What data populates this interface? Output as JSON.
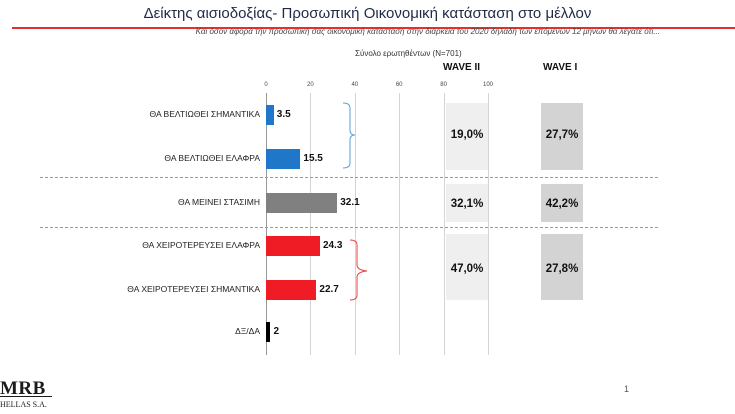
{
  "header": {
    "title": "Δείκτης αισιοδοξίας- Προσωπική Οικονομική κατάσταση στο μέλλον",
    "subtitle": "Και όσον αφορά την προσωπική σας οικονομική κατάσταση στην διάρκεια του 2020 δηλαδή των επόμενων 12 μηνών θα λέγατε ότι..."
  },
  "total_label": "Σύνολο ερωτηθέντων (Ν=701)",
  "wave_headers": {
    "wave2": "WAVE II",
    "wave1": "WAVE I"
  },
  "colors": {
    "blue": "#1f77c9",
    "gray": "#808080",
    "red": "#ef1c25",
    "black": "#000000",
    "accent_rule": "#e03030"
  },
  "chart_data": {
    "type": "bar",
    "orientation": "horizontal",
    "categories": [
      "ΘΑ ΒΕΛΤΙΩΘΕΙ ΣΗΜΑΝΤΙΚΑ",
      "ΘΑ ΒΕΛΤΙΩΘΕΙ ΕΛΑΦΡΑ",
      "ΘΑ ΜΕΙΝΕΙ ΣΤΑΣΙΜΗ",
      "ΘΑ ΧΕΙΡΟΤΕΡΕΥΣΕΙ ΕΛΑΦΡΑ",
      "ΘΑ ΧΕΙΡΟΤΕΡΕΥΣΕΙ ΣΗΜΑΝΤΙΚΑ",
      "ΔΞ/ΔΑ"
    ],
    "values": [
      3.5,
      15.5,
      32.1,
      24.3,
      22.7,
      2
    ],
    "value_labels": [
      "3.5",
      "15.5",
      "32.1",
      "24.3",
      "22.7",
      "2"
    ],
    "bar_colors": [
      "blue",
      "blue",
      "gray",
      "red",
      "red",
      "black"
    ],
    "xlim": [
      0,
      100
    ],
    "ticks": [
      0,
      20,
      40,
      60,
      80,
      100
    ],
    "tick_labels": [
      "0",
      "20",
      "40",
      "60",
      "80",
      "100"
    ],
    "grid": true,
    "groups": [
      {
        "wave2": "19,0%",
        "wave1": "27,7%"
      },
      {
        "wave2": "32,1%",
        "wave1": "42,2%"
      },
      {
        "wave2": "47,0%",
        "wave1": "27,8%"
      }
    ]
  },
  "footer": {
    "logo_main": "MRB",
    "logo_sub": "HELLAS S.A.",
    "page_number": "1"
  }
}
